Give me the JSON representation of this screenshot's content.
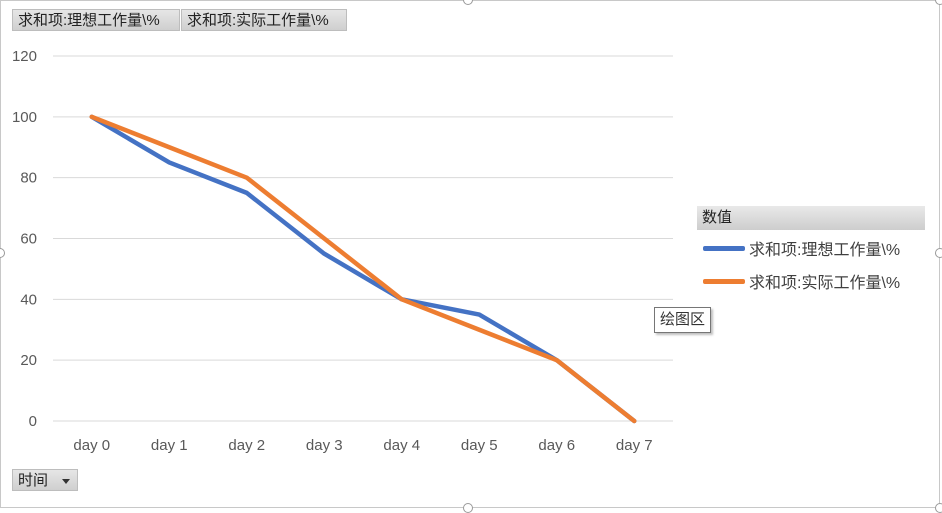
{
  "fields": {
    "series_1": "求和项:理想工作量\\%",
    "series_2": "求和项:实际工作量\\%",
    "axis": "时间"
  },
  "legend": {
    "title": "数值",
    "items": [
      "求和项:理想工作量\\%",
      "求和项:实际工作量\\%"
    ]
  },
  "tooltip": "绘图区",
  "chart_data": {
    "type": "line",
    "title": "",
    "xlabel": "",
    "ylabel": "",
    "categories": [
      "day 0",
      "day 1",
      "day 2",
      "day 3",
      "day 4",
      "day 5",
      "day 6",
      "day 7"
    ],
    "ylim": [
      0,
      120
    ],
    "yticks": [
      0,
      20,
      40,
      60,
      80,
      100,
      120
    ],
    "grid": true,
    "legend_position": "right",
    "series": [
      {
        "name": "求和项:理想工作量\\%",
        "color": "#4472C4",
        "values": [
          100,
          85,
          75,
          55,
          40,
          35,
          20,
          0
        ]
      },
      {
        "name": "求和项:实际工作量\\%",
        "color": "#ED7D31",
        "values": [
          100,
          90,
          80,
          60,
          40,
          30,
          20,
          0
        ]
      }
    ]
  }
}
